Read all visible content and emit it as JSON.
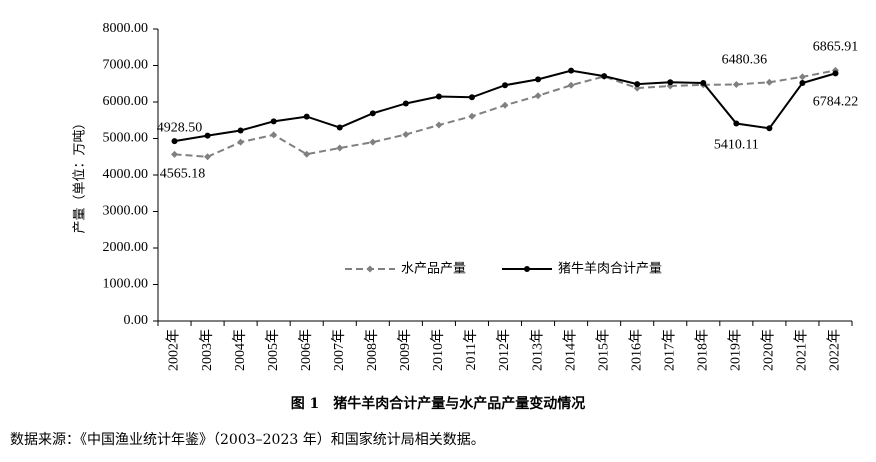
{
  "chart_data": {
    "type": "line",
    "categories": [
      "2002年",
      "2003年",
      "2004年",
      "2005年",
      "2006年",
      "2007年",
      "2008年",
      "2009年",
      "2010年",
      "2011年",
      "2012年",
      "2013年",
      "2014年",
      "2015年",
      "2016年",
      "2017年",
      "2018年",
      "2019年",
      "2020年",
      "2021年",
      "2022年"
    ],
    "ylabel": "产量（单位：万吨）",
    "ylim": [
      0,
      8000
    ],
    "yticks": [
      "0.00",
      "1000.00",
      "2000.00",
      "3000.00",
      "4000.00",
      "5000.00",
      "6000.00",
      "7000.00",
      "8000.00"
    ],
    "legend_position": "center",
    "series": [
      {
        "name": "水产品产量",
        "color": "#808080",
        "style": "dashed-diamond",
        "values": [
          4565.18,
          4500,
          4900,
          5100,
          4570,
          4740,
          4900,
          5110,
          5370,
          5610,
          5910,
          6170,
          6460,
          6700,
          6380,
          6440,
          6470,
          6480.36,
          6540,
          6690,
          6865.91
        ]
      },
      {
        "name": "猪牛羊肉合计产量",
        "color": "#000000",
        "style": "solid-dot",
        "values": [
          4928.5,
          5080,
          5220,
          5470,
          5600,
          5300,
          5690,
          5960,
          6150,
          6130,
          6460,
          6620,
          6860,
          6710,
          6490,
          6540,
          6520,
          5410.11,
          5280,
          6520,
          6784.22
        ]
      }
    ],
    "annotations": [
      {
        "text": "4928.50",
        "series": 1,
        "index": 0
      },
      {
        "text": "4565.18",
        "series": 0,
        "index": 0
      },
      {
        "text": "6480.36",
        "series": 0,
        "index": 17
      },
      {
        "text": "5410.11",
        "series": 1,
        "index": 17
      },
      {
        "text": "6865.91",
        "series": 0,
        "index": 20
      },
      {
        "text": "6784.22",
        "series": 1,
        "index": 20
      }
    ]
  },
  "caption": "图 1　猪牛羊肉合计产量与水产品产量变动情况",
  "source": "数据来源：《中国渔业统计年鉴》（2003–2023 年）和国家统计局相关数据。"
}
